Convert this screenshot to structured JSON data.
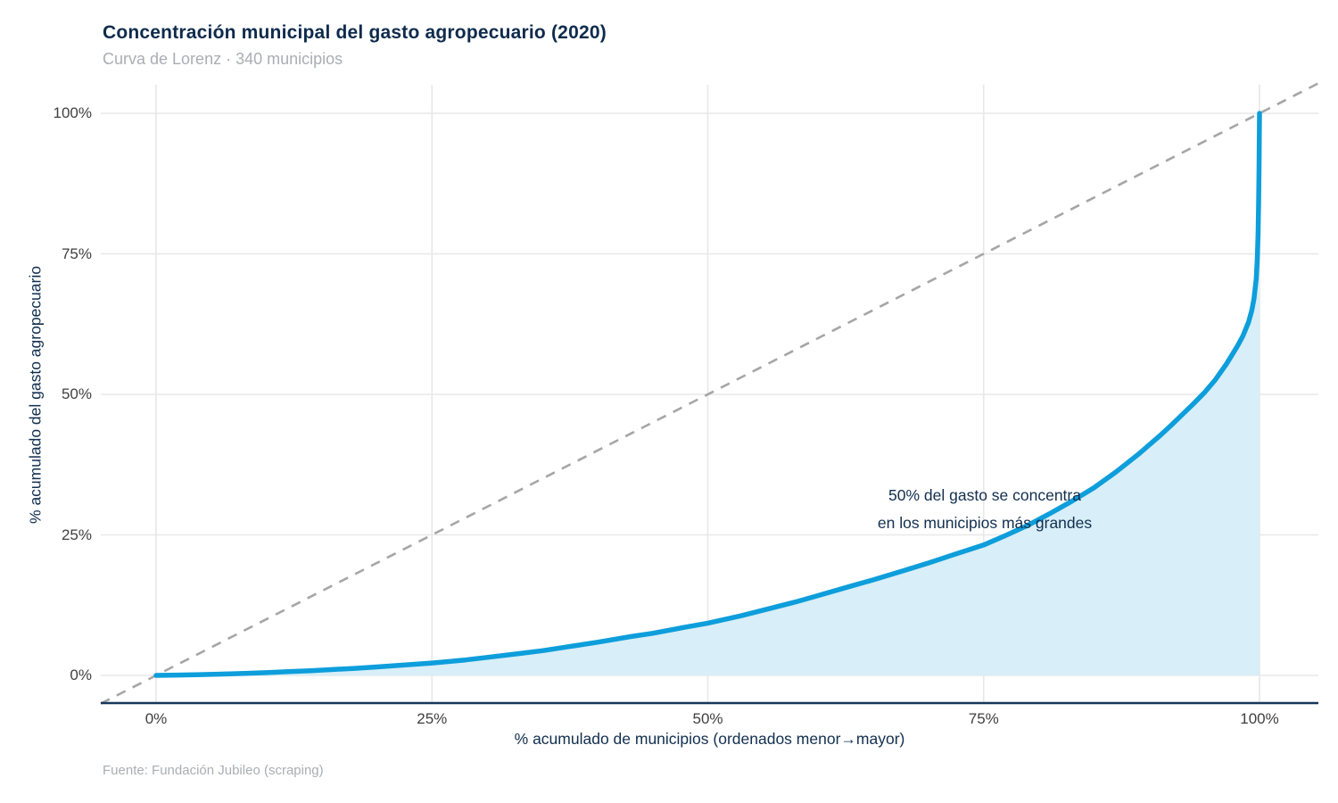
{
  "header": {
    "title": "Concentración municipal del gasto agropecuario (2020)",
    "subtitle": "Curva de Lorenz · 340 municipios"
  },
  "footer": {
    "source": "Fuente: Fundación Jubileo (scraping)"
  },
  "annotation": {
    "line1": "50% del gasto se concentra",
    "line2": "en los municipios más grandes"
  },
  "colors": {
    "curve": "#0d9edb",
    "area_fill": "#d8eef8",
    "equality_line": "#a6a6a6",
    "gridline": "#e8e8e8",
    "axis_line": "#17365a",
    "title_text": "#0e2b4c",
    "muted_text": "#a9aeb4",
    "tick_text": "#3f3f3f",
    "annotation_text": "#122f4e"
  },
  "chart_data": {
    "type": "line",
    "title": "Concentración municipal del gasto agropecuario (2020)",
    "subtitle": "Curva de Lorenz · 340 municipios",
    "xlabel": "% acumulado de municipios (ordenados menor→mayor)",
    "ylabel": "% acumulado del gasto agropecuario",
    "xlim": [
      0,
      100
    ],
    "ylim": [
      0,
      100
    ],
    "x_ticks": {
      "values": [
        0,
        25,
        50,
        75,
        100
      ],
      "labels": [
        "0%",
        "25%",
        "50%",
        "75%",
        "100%"
      ]
    },
    "y_ticks": {
      "values": [
        0,
        25,
        50,
        75,
        100
      ],
      "labels": [
        "0%",
        "25%",
        "50%",
        "75%",
        "100%"
      ]
    },
    "grid": true,
    "legend": false,
    "n_municipios": 340,
    "annotation_text": "50% del gasto se concentra en los municipios más grandes",
    "series": [
      {
        "name": "Curva de Lorenz",
        "style": "solid-filled",
        "x": [
          0,
          2,
          4,
          6,
          8,
          10,
          12,
          14,
          16,
          18,
          20,
          22,
          25,
          28,
          30,
          33,
          35,
          38,
          40,
          43,
          45,
          48,
          50,
          53,
          55,
          58,
          60,
          63,
          65,
          68,
          70,
          72,
          75,
          77,
          79,
          81,
          83,
          85,
          87,
          89,
          90,
          91,
          92,
          93,
          94,
          95,
          96,
          97,
          98,
          98.5,
          99,
          99.3,
          99.5,
          99.7,
          99.8,
          99.87,
          99.92,
          99.96,
          100
        ],
        "y": [
          0,
          0.06,
          0.14,
          0.24,
          0.36,
          0.5,
          0.66,
          0.84,
          1.04,
          1.26,
          1.5,
          1.77,
          2.2,
          2.75,
          3.2,
          3.9,
          4.4,
          5.3,
          5.9,
          6.9,
          7.5,
          8.6,
          9.3,
          10.6,
          11.6,
          13.1,
          14.2,
          15.9,
          17,
          18.8,
          20,
          21.3,
          23.2,
          24.9,
          26.7,
          28.8,
          31,
          33.4,
          36.2,
          39.3,
          41,
          42.7,
          44.5,
          46.4,
          48.3,
          50.3,
          52.6,
          55.4,
          58.6,
          60.4,
          62.8,
          64.9,
          67,
          70.5,
          74,
          78.5,
          84,
          90.5,
          100
        ]
      },
      {
        "name": "Línea de igualdad",
        "style": "dashed",
        "x": [
          0,
          100
        ],
        "y": [
          0,
          100
        ]
      }
    ]
  }
}
